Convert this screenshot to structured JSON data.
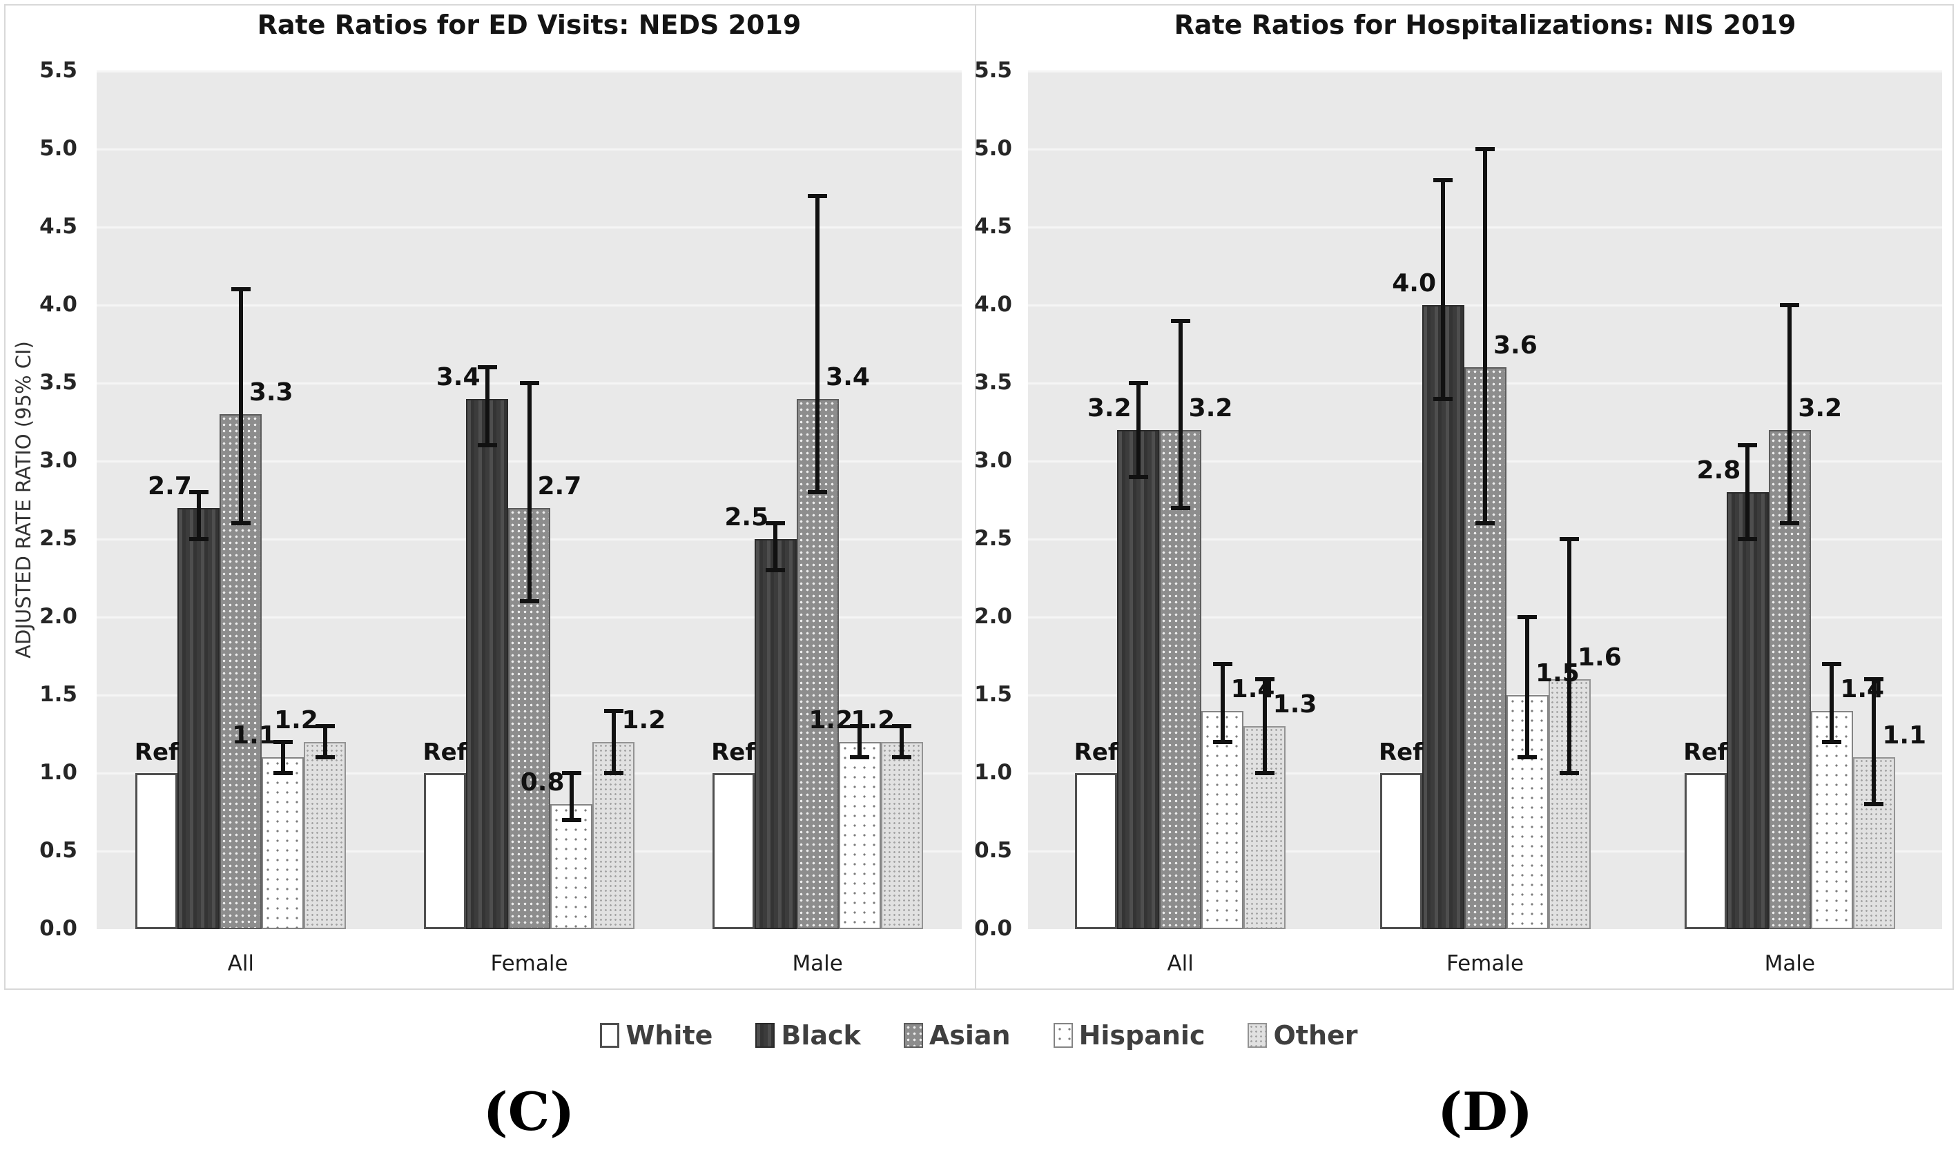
{
  "figure": {
    "y_axis_title": "ADJUSTED RATE RATIO (95% CI)",
    "captions": [
      "(C)",
      "(D)"
    ],
    "legend": {
      "items": [
        {
          "label": "White"
        },
        {
          "label": "Black"
        },
        {
          "label": "Asian"
        },
        {
          "label": "Hispanic"
        },
        {
          "label": "Other"
        }
      ]
    }
  },
  "colors": {
    "plot_background": "#e9e9e9",
    "gridline": "#f5f5f5",
    "bar_white": "#ffffff",
    "bar_black": "#3c3c3c",
    "bar_asian": "#8d8d8d",
    "bar_hispanic": "#ffffff",
    "bar_other": "#e1e1e1",
    "error_bar": "#111111"
  },
  "chart_data": [
    {
      "type": "bar",
      "title": "Rate Ratios for ED Visits: NEDS 2019",
      "ylabel": "ADJUSTED RATE RATIO (95% CI)",
      "ylim": [
        0,
        5.5
      ],
      "yticks": [
        "0.0",
        "0.5",
        "1.0",
        "1.5",
        "2.0",
        "2.5",
        "3.0",
        "3.5",
        "4.0",
        "4.5",
        "5.0",
        "5.5"
      ],
      "grid": true,
      "legend_position": "bottom",
      "categories": [
        "All",
        "Female",
        "Male"
      ],
      "series": [
        "White",
        "Black",
        "Asian",
        "Hispanic",
        "Other"
      ],
      "groups": [
        {
          "category": "All",
          "bars": [
            {
              "series": "White",
              "value": 1.0,
              "label": "Ref"
            },
            {
              "series": "Black",
              "value": 2.7,
              "label": "2.7",
              "ci": [
                2.5,
                2.8
              ],
              "label_side": "left"
            },
            {
              "series": "Asian",
              "value": 3.3,
              "label": "3.3",
              "ci": [
                2.6,
                4.1
              ],
              "label_side": "right"
            },
            {
              "series": "Hispanic",
              "value": 1.1,
              "label": "1.1",
              "ci": [
                1.0,
                1.2
              ],
              "label_side": "left"
            },
            {
              "series": "Other",
              "value": 1.2,
              "label": "1.2",
              "ci": [
                1.1,
                1.3
              ],
              "label_side": "left"
            }
          ]
        },
        {
          "category": "Female",
          "bars": [
            {
              "series": "White",
              "value": 1.0,
              "label": "Ref"
            },
            {
              "series": "Black",
              "value": 3.4,
              "label": "3.4",
              "ci": [
                3.1,
                3.6
              ],
              "label_side": "left"
            },
            {
              "series": "Asian",
              "value": 2.7,
              "label": "2.7",
              "ci": [
                2.1,
                3.5
              ],
              "label_side": "right"
            },
            {
              "series": "Hispanic",
              "value": 0.8,
              "label": "0.8",
              "ci": [
                0.7,
                1.0
              ],
              "label_side": "left"
            },
            {
              "series": "Other",
              "value": 1.2,
              "label": "1.2",
              "ci": [
                1.0,
                1.4
              ],
              "label_side": "right"
            }
          ]
        },
        {
          "category": "Male",
          "bars": [
            {
              "series": "White",
              "value": 1.0,
              "label": "Ref"
            },
            {
              "series": "Black",
              "value": 2.5,
              "label": "2.5",
              "ci": [
                2.3,
                2.6
              ],
              "label_side": "left"
            },
            {
              "series": "Asian",
              "value": 3.4,
              "label": "3.4",
              "ci": [
                2.8,
                4.7
              ],
              "label_side": "right"
            },
            {
              "series": "Hispanic",
              "value": 1.2,
              "label": "1.2",
              "ci": [
                1.1,
                1.3
              ],
              "label_side": "left"
            },
            {
              "series": "Other",
              "value": 1.2,
              "label": "1.2",
              "ci": [
                1.1,
                1.3
              ],
              "label_side": "left"
            }
          ]
        }
      ]
    },
    {
      "type": "bar",
      "title": "Rate Ratios for Hospitalizations: NIS 2019",
      "ylabel": "",
      "ylim": [
        0,
        5.5
      ],
      "yticks": [
        "0.0",
        "0.5",
        "1.0",
        "1.5",
        "2.0",
        "2.5",
        "3.0",
        "3.5",
        "4.0",
        "4.5",
        "5.0",
        "5.5"
      ],
      "grid": true,
      "legend_position": "bottom",
      "categories": [
        "All",
        "Female",
        "Male"
      ],
      "series": [
        "White",
        "Black",
        "Asian",
        "Hispanic",
        "Other"
      ],
      "groups": [
        {
          "category": "All",
          "bars": [
            {
              "series": "White",
              "value": 1.0,
              "label": "Ref"
            },
            {
              "series": "Black",
              "value": 3.2,
              "label": "3.2",
              "ci": [
                2.9,
                3.5
              ],
              "label_side": "left"
            },
            {
              "series": "Asian",
              "value": 3.2,
              "label": "3.2",
              "ci": [
                2.7,
                3.9
              ],
              "label_side": "right"
            },
            {
              "series": "Hispanic",
              "value": 1.4,
              "label": "1.4",
              "ci": [
                1.2,
                1.7
              ],
              "label_side": "right"
            },
            {
              "series": "Other",
              "value": 1.3,
              "label": "1.3",
              "ci": [
                1.0,
                1.6
              ],
              "label_side": "right"
            }
          ]
        },
        {
          "category": "Female",
          "bars": [
            {
              "series": "White",
              "value": 1.0,
              "label": "Ref"
            },
            {
              "series": "Black",
              "value": 4.0,
              "label": "4.0",
              "ci": [
                3.4,
                4.8
              ],
              "label_side": "left"
            },
            {
              "series": "Asian",
              "value": 3.6,
              "label": "3.6",
              "ci": [
                2.6,
                5.0
              ],
              "label_side": "right"
            },
            {
              "series": "Hispanic",
              "value": 1.5,
              "label": "1.5",
              "ci": [
                1.1,
                2.0
              ],
              "label_side": "right"
            },
            {
              "series": "Other",
              "value": 1.6,
              "label": "1.6",
              "ci": [
                1.0,
                2.5
              ],
              "label_side": "right"
            }
          ]
        },
        {
          "category": "Male",
          "bars": [
            {
              "series": "White",
              "value": 1.0,
              "label": "Ref"
            },
            {
              "series": "Black",
              "value": 2.8,
              "label": "2.8",
              "ci": [
                2.5,
                3.1
              ],
              "label_side": "left"
            },
            {
              "series": "Asian",
              "value": 3.2,
              "label": "3.2",
              "ci": [
                2.6,
                4.0
              ],
              "label_side": "right"
            },
            {
              "series": "Hispanic",
              "value": 1.4,
              "label": "1.4",
              "ci": [
                1.2,
                1.7
              ],
              "label_side": "right"
            },
            {
              "series": "Other",
              "value": 1.1,
              "label": "1.1",
              "ci": [
                0.8,
                1.6
              ],
              "label_side": "right"
            }
          ]
        }
      ]
    }
  ]
}
